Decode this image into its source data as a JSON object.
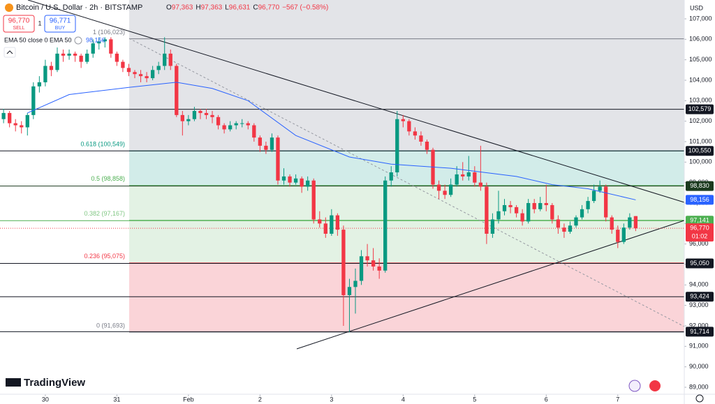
{
  "header": {
    "symbol": "Bitcoin / U.S. Dollar · 2h · BITSTAMP",
    "ohlc_legend": [
      "O",
      "97,363",
      "H",
      "97,363",
      "L",
      "96,631",
      "C",
      "96,770",
      "−567 (−0.58%)"
    ],
    "sell_price": "96,770",
    "sell": "SELL",
    "spread": "1",
    "buy_price": "96,771",
    "buy": "BUY",
    "indicator": "EMA 50 close 0 EMA 50",
    "indicator_value": "98,156",
    "currency": "USD",
    "logo": "TradingView"
  },
  "chart_data": {
    "type": "candlestick",
    "up_color": "#089981",
    "down_color": "#f23645",
    "x": [
      -14,
      -12,
      -10,
      -8,
      -6,
      -4,
      -2,
      0,
      2,
      4,
      6,
      8,
      10,
      12,
      14,
      16,
      18,
      20,
      22,
      24,
      26,
      28,
      30,
      32,
      34,
      36,
      38,
      40,
      42,
      44,
      46,
      48,
      50,
      52,
      54,
      56,
      58,
      60,
      62,
      64,
      66,
      68,
      70,
      72,
      74,
      76,
      78,
      80,
      82,
      84,
      86,
      88,
      90,
      92,
      94,
      96,
      98,
      100,
      102,
      104,
      106,
      108,
      110,
      112,
      114,
      116,
      118,
      120,
      122,
      124,
      126,
      128,
      130,
      132,
      134,
      136,
      138,
      140,
      142,
      144,
      146,
      148,
      150,
      152,
      154,
      156,
      158,
      160,
      162,
      164,
      166,
      168,
      170,
      172,
      174,
      176,
      178,
      180,
      182,
      184,
      186,
      188,
      190,
      192,
      194,
      196,
      198
    ],
    "ohlc": [
      [
        102100,
        102600,
        101900,
        102400
      ],
      [
        102400,
        102500,
        101700,
        101900
      ],
      [
        101900,
        102100,
        101500,
        101800
      ],
      [
        101800,
        102000,
        101400,
        101700
      ],
      [
        101700,
        102400,
        101300,
        102300
      ],
      [
        102300,
        103900,
        102100,
        103700
      ],
      [
        103700,
        104200,
        103400,
        103900
      ],
      [
        103900,
        105000,
        103700,
        104700
      ],
      [
        104700,
        104900,
        104200,
        104500
      ],
      [
        104500,
        105600,
        104400,
        105300
      ],
      [
        105300,
        105500,
        104900,
        105200
      ],
      [
        105200,
        105500,
        105000,
        105300
      ],
      [
        105300,
        105400,
        104900,
        105200
      ],
      [
        105200,
        105300,
        104600,
        104900
      ],
      [
        104900,
        105500,
        104800,
        105300
      ],
      [
        105300,
        106000,
        105100,
        105800
      ],
      [
        105800,
        106100,
        105500,
        105900
      ],
      [
        105900,
        106100,
        105600,
        106000
      ],
      [
        106000,
        106100,
        105100,
        105300
      ],
      [
        105300,
        105400,
        104700,
        104900
      ],
      [
        104900,
        105000,
        104400,
        104600
      ],
      [
        104600,
        104800,
        104200,
        104400
      ],
      [
        104400,
        104500,
        104100,
        104300
      ],
      [
        104300,
        104500,
        103900,
        104200
      ],
      [
        104200,
        104400,
        103900,
        104100
      ],
      [
        104100,
        104700,
        104000,
        104500
      ],
      [
        104500,
        104900,
        104300,
        104700
      ],
      [
        104700,
        106100,
        104500,
        105300
      ],
      [
        105300,
        105500,
        104500,
        104700
      ],
      [
        104700,
        104800,
        102200,
        102300
      ],
      [
        102300,
        102500,
        101300,
        102000
      ],
      [
        102000,
        102300,
        101800,
        102100
      ],
      [
        102100,
        102700,
        102000,
        102500
      ],
      [
        102500,
        102600,
        102100,
        102400
      ],
      [
        102400,
        102600,
        102100,
        102300
      ],
      [
        102300,
        102500,
        101900,
        102200
      ],
      [
        102200,
        102300,
        101600,
        101800
      ],
      [
        101800,
        101900,
        101400,
        101600
      ],
      [
        101600,
        102000,
        101500,
        101800
      ],
      [
        101800,
        102000,
        101600,
        101900
      ],
      [
        101900,
        102100,
        101700,
        101900
      ],
      [
        101900,
        102000,
        101600,
        101800
      ],
      [
        101800,
        101900,
        101000,
        101200
      ],
      [
        101200,
        101300,
        100500,
        100800
      ],
      [
        100800,
        101000,
        100400,
        100600
      ],
      [
        100600,
        101400,
        100500,
        101200
      ],
      [
        101200,
        101300,
        98900,
        99100
      ],
      [
        99100,
        99700,
        98900,
        99300
      ],
      [
        99300,
        99400,
        98800,
        99000
      ],
      [
        99000,
        99400,
        98900,
        99200
      ],
      [
        99200,
        99300,
        98500,
        98800
      ],
      [
        98800,
        99300,
        98600,
        99100
      ],
      [
        99100,
        99200,
        97000,
        97200
      ],
      [
        97200,
        97600,
        96800,
        97000
      ],
      [
        97000,
        97300,
        96300,
        96500
      ],
      [
        96500,
        97700,
        96400,
        97400
      ],
      [
        97400,
        97500,
        96400,
        96700
      ],
      [
        96700,
        96900,
        92000,
        93500
      ],
      [
        93500,
        94300,
        91700,
        93900
      ],
      [
        93900,
        94800,
        92600,
        94200
      ],
      [
        94200,
        95700,
        94000,
        95400
      ],
      [
        95400,
        96000,
        94900,
        95200
      ],
      [
        95200,
        95800,
        94700,
        94900
      ],
      [
        94900,
        95300,
        94300,
        94700
      ],
      [
        94700,
        99300,
        94600,
        99100
      ],
      [
        99100,
        99800,
        98800,
        99500
      ],
      [
        99500,
        102500,
        99300,
        102100
      ],
      [
        102100,
        102300,
        101700,
        102000
      ],
      [
        102000,
        102100,
        101300,
        101500
      ],
      [
        101500,
        101700,
        101100,
        101300
      ],
      [
        101300,
        101500,
        100800,
        101000
      ],
      [
        101000,
        101100,
        100400,
        100600
      ],
      [
        100600,
        100700,
        98700,
        98900
      ],
      [
        98900,
        99100,
        98200,
        98600
      ],
      [
        98600,
        98900,
        98200,
        98400
      ],
      [
        98400,
        99200,
        98300,
        98900
      ],
      [
        98900,
        99800,
        98800,
        99400
      ],
      [
        99400,
        100000,
        99100,
        99300
      ],
      [
        99300,
        100300,
        99100,
        99500
      ],
      [
        99500,
        99800,
        98800,
        99000
      ],
      [
        99000,
        100800,
        98600,
        98800
      ],
      [
        98800,
        99000,
        96000,
        96500
      ],
      [
        96500,
        97500,
        96300,
        97200
      ],
      [
        97200,
        98600,
        97000,
        97600
      ],
      [
        97600,
        98200,
        97400,
        97900
      ],
      [
        97900,
        98100,
        97500,
        97800
      ],
      [
        97800,
        97900,
        97300,
        97500
      ],
      [
        97500,
        97700,
        96900,
        97100
      ],
      [
        97100,
        98200,
        97000,
        98000
      ],
      [
        98000,
        98200,
        97500,
        97700
      ],
      [
        97700,
        98300,
        97600,
        98000
      ],
      [
        98000,
        98900,
        97600,
        97900
      ],
      [
        97900,
        98000,
        97000,
        97200
      ],
      [
        97200,
        97400,
        96500,
        96800
      ],
      [
        96800,
        97000,
        96300,
        96600
      ],
      [
        96600,
        97100,
        96500,
        96900
      ],
      [
        96900,
        97400,
        96800,
        97300
      ],
      [
        97300,
        97900,
        97200,
        97700
      ],
      [
        97700,
        98300,
        97500,
        98100
      ],
      [
        98100,
        98900,
        98000,
        98600
      ],
      [
        98600,
        99100,
        98500,
        98800
      ],
      [
        98800,
        98900,
        97100,
        97300
      ],
      [
        97300,
        97400,
        96500,
        96700
      ],
      [
        96700,
        96900,
        95800,
        96100
      ],
      [
        96100,
        97000,
        96000,
        96800
      ],
      [
        96800,
        97500,
        96700,
        97300
      ],
      [
        97363,
        97363,
        96631,
        96770
      ]
    ],
    "ema": {
      "name": "EMA 50",
      "color": "#2962ff",
      "x": [
        -6,
        8,
        28,
        44,
        56,
        68,
        84,
        102,
        116,
        136,
        158,
        170,
        182,
        198
      ],
      "values": [
        102400,
        103300,
        103650,
        103900,
        103600,
        103000,
        101300,
        100250,
        99900,
        99700,
        99300,
        98900,
        98700,
        98156
      ],
      "last_label": "98,156"
    },
    "fib_levels": [
      {
        "value": 106023,
        "label": "1 (106,023)",
        "color": "#787b86",
        "fill": "#e3e4e8"
      },
      {
        "value": 100549,
        "label": "0.618 (100,549)",
        "color": "#089981",
        "fill": "#d2ece9"
      },
      {
        "value": 98858,
        "label": "0.5 (98,858)",
        "color": "#4caf50",
        "fill": "#e3f2e4"
      },
      {
        "value": 97167,
        "label": "0.382 (97,167)",
        "color": "#81c784",
        "fill": "#e3f2e4"
      },
      {
        "value": 95075,
        "label": "0.236 (95,075)",
        "color": "#f23645",
        "fill": "#fad4d8"
      },
      {
        "value": 91693,
        "label": "0 (91,693)",
        "color": "#787b86"
      }
    ],
    "price_levels": [
      {
        "value": 102579,
        "label": "102,579",
        "color": "#131722"
      },
      {
        "value": 100550,
        "label": "100,550",
        "color": "#131722"
      },
      {
        "value": 98830,
        "label": "98,830",
        "color": "#1b3a1e"
      },
      {
        "value": 97141,
        "label": "97,141",
        "color": "#4caf50"
      },
      {
        "value": 95050,
        "label": "95,050",
        "color": "#131722"
      },
      {
        "value": 93424,
        "label": "93,424",
        "color": "#131722"
      },
      {
        "value": 91714,
        "label": "91,714",
        "color": "#131722"
      }
    ],
    "last_price": {
      "value": 96770,
      "label": "96,770",
      "countdown": "01:02",
      "color": "#f23645"
    },
    "xlim": [
      -15.2,
      214.3
    ],
    "xticks": [
      {
        "value": 0,
        "label": "30"
      },
      {
        "value": 24,
        "label": "31"
      },
      {
        "value": 48,
        "label": "Feb"
      },
      {
        "value": 72,
        "label": "2"
      },
      {
        "value": 96,
        "label": "3"
      },
      {
        "value": 120,
        "label": "4"
      },
      {
        "value": 144,
        "label": "5"
      },
      {
        "value": 168,
        "label": "6"
      },
      {
        "value": 192,
        "label": "7"
      }
    ],
    "ylim": [
      88660,
      107920
    ],
    "yticks": [
      {
        "value": 89000,
        "label": "89,000"
      },
      {
        "value": 90000,
        "label": "90,000"
      },
      {
        "value": 91000,
        "label": "91,000"
      },
      {
        "value": 92000,
        "label": "92,000"
      },
      {
        "value": 93000,
        "label": "93,000"
      },
      {
        "value": 94000,
        "label": "94,000"
      },
      {
        "value": 95000,
        "label": "95,000"
      },
      {
        "value": 96000,
        "label": "96,000"
      },
      {
        "value": 97000,
        "label": "97,000"
      },
      {
        "value": 98000,
        "label": "98,000"
      },
      {
        "value": 99000,
        "label": "99,000"
      },
      {
        "value": 100000,
        "label": "100,000"
      },
      {
        "value": 101000,
        "label": "101,000"
      },
      {
        "value": 102000,
        "label": "102,000"
      },
      {
        "value": 103000,
        "label": "103,000"
      },
      {
        "value": 104000,
        "label": "104,000"
      },
      {
        "value": 105000,
        "label": "105,000"
      },
      {
        "value": 106000,
        "label": "106,000"
      },
      {
        "value": 107000,
        "label": "107,000"
      }
    ]
  }
}
